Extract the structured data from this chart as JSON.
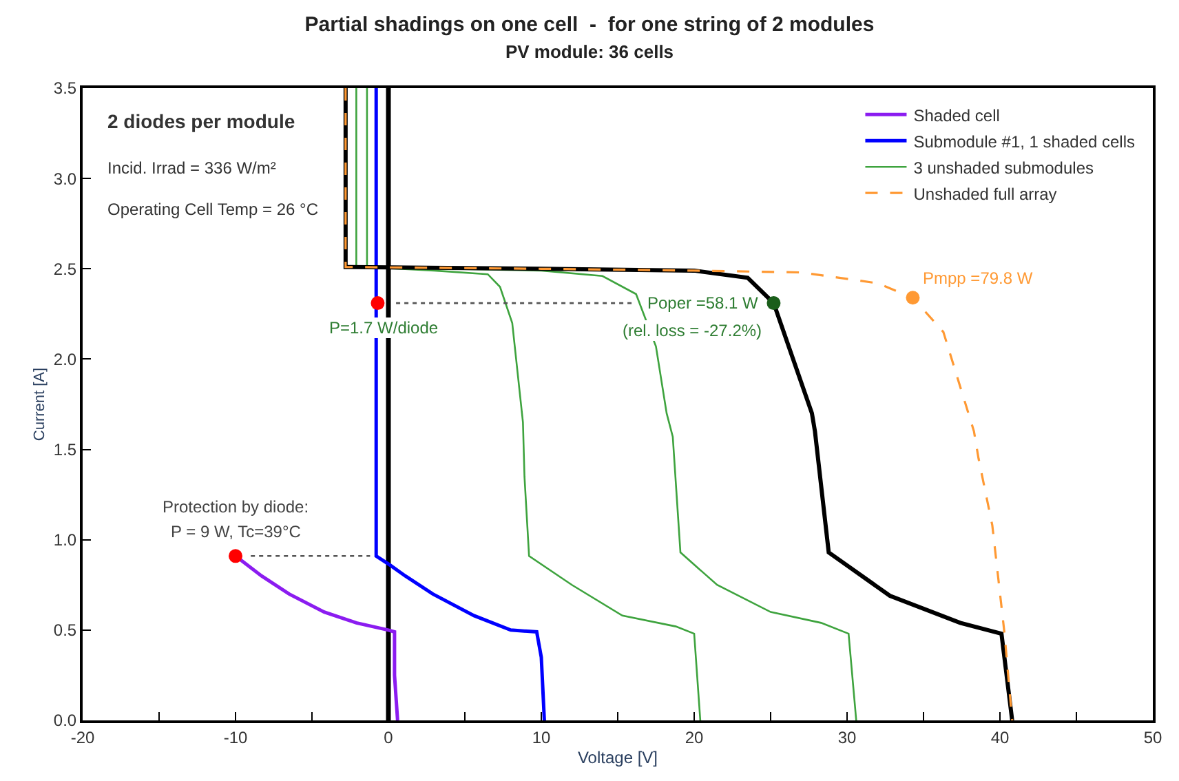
{
  "chart_data": {
    "type": "line",
    "title": "Partial shadings on one cell  -  for one string of 2 modules",
    "subtitle": "PV module: 36 cells",
    "xlabel": "Voltage [V]",
    "ylabel": "Current [A]",
    "xlim": [
      -20,
      50
    ],
    "ylim": [
      0,
      3.5
    ],
    "xticks": [
      -20,
      {
        "value": -15,
        "label": null
      },
      -10,
      {
        "value": -5,
        "label": null
      },
      0,
      {
        "value": 5,
        "label": null
      },
      10,
      {
        "value": 15,
        "label": null
      },
      20,
      {
        "value": 25,
        "label": null
      },
      30,
      {
        "value": 35,
        "label": null
      },
      40,
      {
        "value": 45,
        "label": null
      },
      50
    ],
    "yticks": [
      {
        "value": 0,
        "label": "0.0"
      },
      0.5,
      {
        "value": 1,
        "label": "1.0"
      },
      1.5,
      {
        "value": 2,
        "label": "2.0"
      },
      2.5,
      {
        "value": 3,
        "label": "3.0"
      },
      3.5
    ],
    "grid": false,
    "legend": "top right",
    "marker": "none",
    "line_style": "solid",
    "ref_lines": [
      {
        "axis": "x",
        "value": 0,
        "color": "#000000"
      }
    ],
    "series": [
      {
        "name": "Shaded cell",
        "color": "#8b1cf0",
        "x": [
          -10.0,
          -8.3,
          -6.5,
          -4.2,
          -2.1,
          0.0,
          0.4,
          0.4,
          0.6
        ],
        "values": [
          0.91,
          0.8,
          0.7,
          0.6,
          0.54,
          0.5,
          0.49,
          0.25,
          0
        ]
      },
      {
        "name": "Submodule #1, 1 shaded cells",
        "color": "#0000ff",
        "x": [
          -0.8,
          -0.8,
          0.1,
          1.1,
          2.9,
          5.6,
          8.0,
          9.7,
          10.0,
          10.2
        ],
        "values": [
          3.5,
          0.91,
          0.86,
          0.8,
          0.7,
          0.58,
          0.5,
          0.49,
          0.35,
          0
        ]
      },
      {
        "name": "3 unshaded submodules",
        "color": "#3ea33e",
        "x": [
          -1.4,
          -1.4,
          3.0,
          6.5,
          7.3,
          8.1,
          8.8,
          8.9,
          9.2,
          12.0,
          15.3,
          18.8,
          20.0,
          20.4
        ],
        "values": [
          3.5,
          2.51,
          2.49,
          2.47,
          2.4,
          2.2,
          1.65,
          1.35,
          0.91,
          0.75,
          0.58,
          0.52,
          0.48,
          0
        ]
      },
      {
        "color": "#3ea33e",
        "x": [
          -2.1,
          -2.1,
          10.0,
          14.0,
          16.2,
          17.5,
          18.2,
          18.6,
          19.1,
          21.5,
          25.0,
          28.3,
          30.1,
          30.6
        ],
        "values": [
          3.5,
          2.51,
          2.49,
          2.46,
          2.36,
          2.07,
          1.7,
          1.57,
          0.93,
          0.75,
          0.6,
          0.54,
          0.48,
          0
        ]
      },
      {
        "color": "#000000",
        "x": [
          -2.8,
          -2.8,
          10.0,
          20.0,
          23.5,
          25.2,
          27.7,
          27.9,
          28.8,
          32.8,
          37.4,
          40.1,
          40.8
        ],
        "values": [
          3.5,
          2.51,
          2.5,
          2.49,
          2.45,
          2.31,
          1.7,
          1.6,
          0.93,
          0.69,
          0.54,
          0.48,
          0
        ]
      },
      {
        "name": "Unshaded full array",
        "color": "#ff9933",
        "line_style": "dashed",
        "x": [
          -2.8,
          -2.8,
          10.0,
          20.0,
          27.0,
          29.5,
          32.0,
          34.3,
          36.3,
          38.3,
          38.6,
          39.5,
          40.3,
          40.8
        ],
        "values": [
          3.5,
          2.51,
          2.5,
          2.49,
          2.48,
          2.45,
          2.42,
          2.34,
          2.15,
          1.6,
          1.45,
          1.08,
          0.48,
          0
        ]
      },
      {
        "color": "#555555",
        "line_style": "dotted",
        "x": [
          -9.0,
          -1.2
        ],
        "values": [
          0.91,
          0.91
        ]
      },
      {
        "color": "#555555",
        "line_style": "dotted",
        "x": [
          0.5,
          16.0
        ],
        "values": [
          2.31,
          2.31
        ]
      },
      {
        "type": "scatter",
        "marker": "circle",
        "colors": [
          "#ff0000",
          "#ff0000",
          "#1a5e1a",
          "#ff9933"
        ],
        "x": [
          -10.0,
          -0.7,
          25.2,
          34.3
        ],
        "values": [
          0.91,
          2.31,
          2.31,
          2.34
        ]
      }
    ],
    "annotations": [
      "2 diodes per module",
      "Incid. Irrad = 336 W/m²",
      "Operating Cell Temp = 26 °C",
      {
        "text": "P=1.7 W/diode",
        "x": -0.7,
        "y": 2.31
      },
      {
        "text": "Poper =58.1 W",
        "x": 25.2,
        "y": 2.31
      },
      {
        "text": "(rel. loss = -27.2%)",
        "x": 25.2,
        "y": 2.31
      },
      {
        "text": "Pmpp =79.8 W",
        "x": 34.3,
        "y": 2.34
      },
      {
        "text": "Protection by diode:",
        "x": -10.0,
        "y": 0.91
      },
      {
        "text": "P = 9 W, Tc=39°C",
        "x": -10.0,
        "y": 0.91
      }
    ]
  }
}
